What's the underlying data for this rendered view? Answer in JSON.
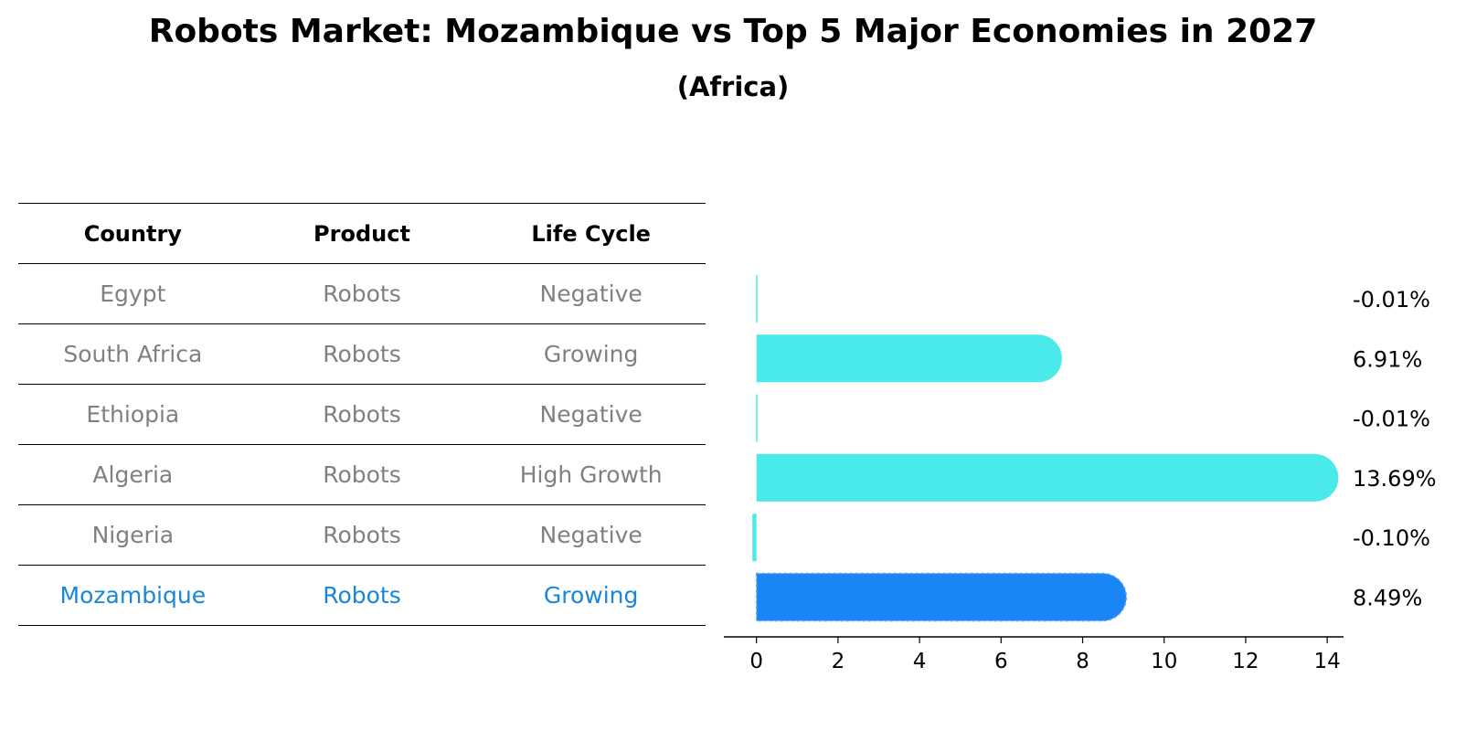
{
  "title": "Robots Market: Mozambique vs Top 5 Major Economies in 2027",
  "subtitle": "(Africa)",
  "table": {
    "headers": [
      "Country",
      "Product",
      "Life Cycle"
    ],
    "rows": [
      {
        "country": "Egypt",
        "product": "Robots",
        "life_cycle": "Negative"
      },
      {
        "country": "South Africa",
        "product": "Robots",
        "life_cycle": "Growing"
      },
      {
        "country": "Ethiopia",
        "product": "Robots",
        "life_cycle": "Negative"
      },
      {
        "country": "Algeria",
        "product": "Robots",
        "life_cycle": "High Growth"
      },
      {
        "country": "Nigeria",
        "product": "Robots",
        "life_cycle": "Negative"
      },
      {
        "country": "Mozambique",
        "product": "Robots",
        "life_cycle": "Growing"
      }
    ]
  },
  "chart_data": {
    "type": "bar",
    "orientation": "horizontal",
    "categories": [
      "Egypt",
      "South Africa",
      "Ethiopia",
      "Algeria",
      "Nigeria",
      "Mozambique"
    ],
    "values": [
      -0.01,
      6.91,
      -0.01,
      13.69,
      -0.1,
      8.49
    ],
    "value_labels": [
      "-0.01%",
      "6.91%",
      "-0.01%",
      "13.69%",
      "-0.10%",
      "8.49%"
    ],
    "highlight_index": 5,
    "xlim": [
      -0.8,
      14.4
    ],
    "xticks": [
      0,
      2,
      4,
      6,
      8,
      10,
      12,
      14
    ],
    "colors": {
      "default": "#4aeaea",
      "highlight": "#1a86f5",
      "highlight_text": "#1a86d6",
      "muted_text": "#808080"
    }
  }
}
